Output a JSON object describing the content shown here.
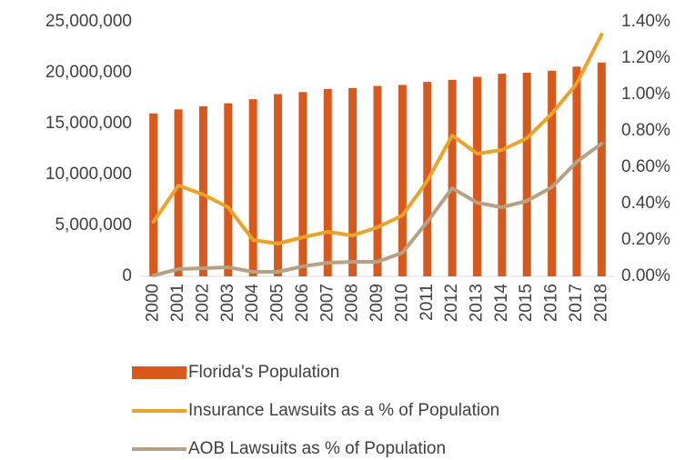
{
  "chart_data": {
    "type": "bar_line",
    "categories": [
      "2000",
      "2001",
      "2002",
      "2003",
      "2004",
      "2005",
      "2006",
      "2007",
      "2008",
      "2009",
      "2010",
      "2011",
      "2012",
      "2013",
      "2014",
      "2015",
      "2016",
      "2017",
      "2018"
    ],
    "series": [
      {
        "name": "Florida's Population",
        "type": "bar",
        "color": "#d9591c",
        "values": [
          16000000,
          16400000,
          16700000,
          17000000,
          17400000,
          17900000,
          18100000,
          18400000,
          18500000,
          18700000,
          18800000,
          19100000,
          19300000,
          19600000,
          19900000,
          20000000,
          20200000,
          20600000,
          21000000
        ]
      },
      {
        "name": "Insurance Lawsuits as a % of Population",
        "type": "line",
        "axis": "y2",
        "color": "#eba22b",
        "values": [
          0.3,
          0.5,
          0.45,
          0.38,
          0.2,
          0.18,
          0.215,
          0.245,
          0.225,
          0.27,
          0.335,
          0.525,
          0.775,
          0.675,
          0.695,
          0.76,
          0.895,
          1.06,
          1.33
        ]
      },
      {
        "name": "AOB Lawsuits as % of Population",
        "type": "line",
        "axis": "y2",
        "color": "#b5a285",
        "values": [
          0.005,
          0.04,
          0.045,
          0.05,
          0.025,
          0.025,
          0.055,
          0.075,
          0.08,
          0.08,
          0.13,
          0.3,
          0.485,
          0.405,
          0.38,
          0.415,
          0.49,
          0.63,
          0.73
        ]
      }
    ],
    "ylim": [
      0,
      25000000
    ],
    "yticks": [
      0,
      {
        "value": 5000000,
        "label": "5,000,000"
      },
      {
        "value": 10000000,
        "label": "10,000,000"
      },
      {
        "value": 15000000,
        "label": "15,000,000"
      },
      {
        "value": 20000000,
        "label": "20,000,000"
      },
      {
        "value": 25000000,
        "label": "25,000,000"
      }
    ],
    "y2lim": [
      0,
      1.4
    ],
    "y2ticks": [
      {
        "value": 0,
        "label": "0.00%"
      },
      {
        "value": 0.2,
        "label": "0.20%"
      },
      {
        "value": 0.4,
        "label": "0.40%"
      },
      {
        "value": 0.6,
        "label": "0.60%"
      },
      {
        "value": 0.8,
        "label": "0.80%"
      },
      {
        "value": 1.0,
        "label": "1.00%"
      },
      {
        "value": 1.2,
        "label": "1.20%"
      },
      {
        "value": 1.4,
        "label": "1.40%"
      }
    ],
    "legend": "bottom"
  }
}
